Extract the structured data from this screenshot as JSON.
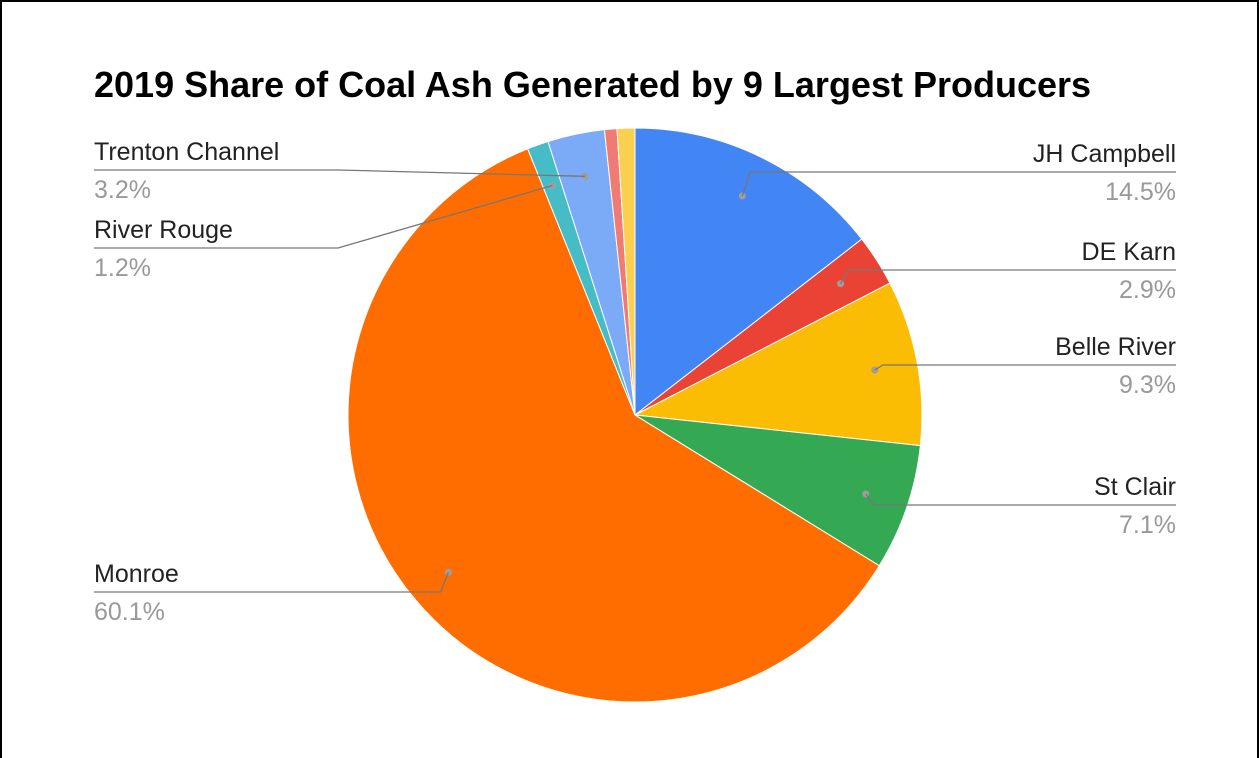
{
  "chart_data": {
    "type": "pie",
    "title": "2019 Share of Coal Ash Generated by 9 Largest Producers",
    "slices": [
      {
        "name": "JH Campbell",
        "value": 14.5,
        "label": "14.5%",
        "color": "#4285f4",
        "labeled": true
      },
      {
        "name": "DE Karn",
        "value": 2.9,
        "label": "2.9%",
        "color": "#ea4335",
        "labeled": true
      },
      {
        "name": "Belle River",
        "value": 9.3,
        "label": "9.3%",
        "color": "#fbbc04",
        "labeled": true
      },
      {
        "name": "St Clair",
        "value": 7.1,
        "label": "7.1%",
        "color": "#34a853",
        "labeled": true
      },
      {
        "name": "Monroe",
        "value": 60.1,
        "label": "60.1%",
        "color": "#ff6d01",
        "labeled": true
      },
      {
        "name": "River Rouge",
        "value": 1.2,
        "label": "1.2%",
        "color": "#46bdc6",
        "labeled": true
      },
      {
        "name": "Trenton Channel",
        "value": 3.2,
        "label": "3.2%",
        "color": "#7baaf7",
        "labeled": true
      },
      {
        "value": 0.7,
        "color": "#f07b72",
        "labeled": false
      },
      {
        "value": 1.0,
        "color": "#fcd04f",
        "labeled": false
      }
    ],
    "legend": "none"
  }
}
